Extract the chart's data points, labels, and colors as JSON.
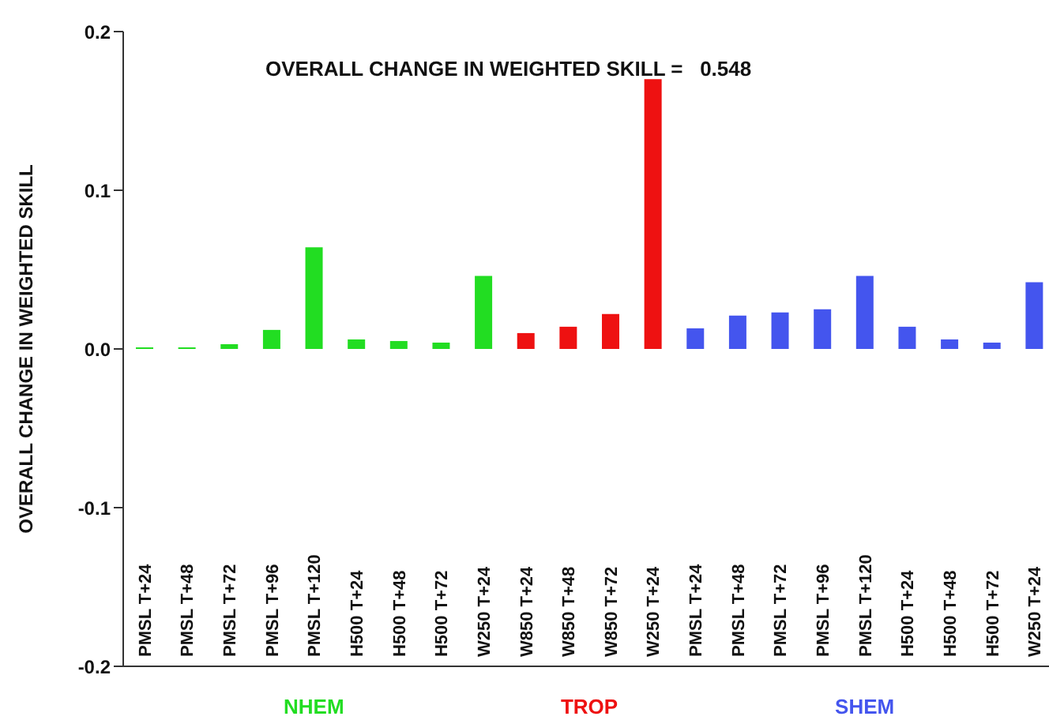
{
  "chart_data": {
    "type": "bar",
    "title": "OVERALL CHANGE IN WEIGHTED SKILL =   0.548",
    "ylabel": "OVERALL CHANGE IN WEIGHTED SKILL",
    "categories": [
      "PMSL T+24",
      "PMSL T+48",
      "PMSL T+72",
      "PMSL T+96",
      "PMSL T+120",
      "H500 T+24",
      "H500 T+48",
      "H500 T+72",
      "W250 T+24",
      "W850 T+24",
      "W850 T+48",
      "W850 T+72",
      "W250 T+24",
      "PMSL T+24",
      "PMSL T+48",
      "PMSL T+72",
      "PMSL T+96",
      "PMSL T+120",
      "H500 T+24",
      "H500 T+48",
      "H500 T+72",
      "W250 T+24"
    ],
    "series": [
      {
        "name": "NHEM",
        "color": "#22dd22",
        "values": [
          0.001,
          0.001,
          0.003,
          0.012,
          0.064,
          0.006,
          0.005,
          0.004,
          0.046,
          null,
          null,
          null,
          null,
          null,
          null,
          null,
          null,
          null,
          null,
          null,
          null,
          null
        ]
      },
      {
        "name": "TROP",
        "color": "#ee1111",
        "values": [
          null,
          null,
          null,
          null,
          null,
          null,
          null,
          null,
          null,
          0.01,
          0.014,
          0.022,
          0.17,
          null,
          null,
          null,
          null,
          null,
          null,
          null,
          null,
          null
        ]
      },
      {
        "name": "SHEM",
        "color": "#4455ee",
        "values": [
          null,
          null,
          null,
          null,
          null,
          null,
          null,
          null,
          null,
          null,
          null,
          null,
          null,
          0.013,
          0.021,
          0.023,
          0.025,
          0.046,
          0.014,
          0.006,
          0.004,
          0.042
        ]
      }
    ],
    "ylim": [
      -0.2,
      0.2
    ],
    "yticks": [
      {
        "value": -0.2,
        "label": "-0.2"
      },
      {
        "value": -0.1,
        "label": "-0.1"
      },
      {
        "value": 0,
        "label": "0.0"
      },
      {
        "value": 0.1,
        "label": "0.1"
      },
      {
        "value": 0.2,
        "label": "0.2"
      }
    ],
    "grid": false
  }
}
